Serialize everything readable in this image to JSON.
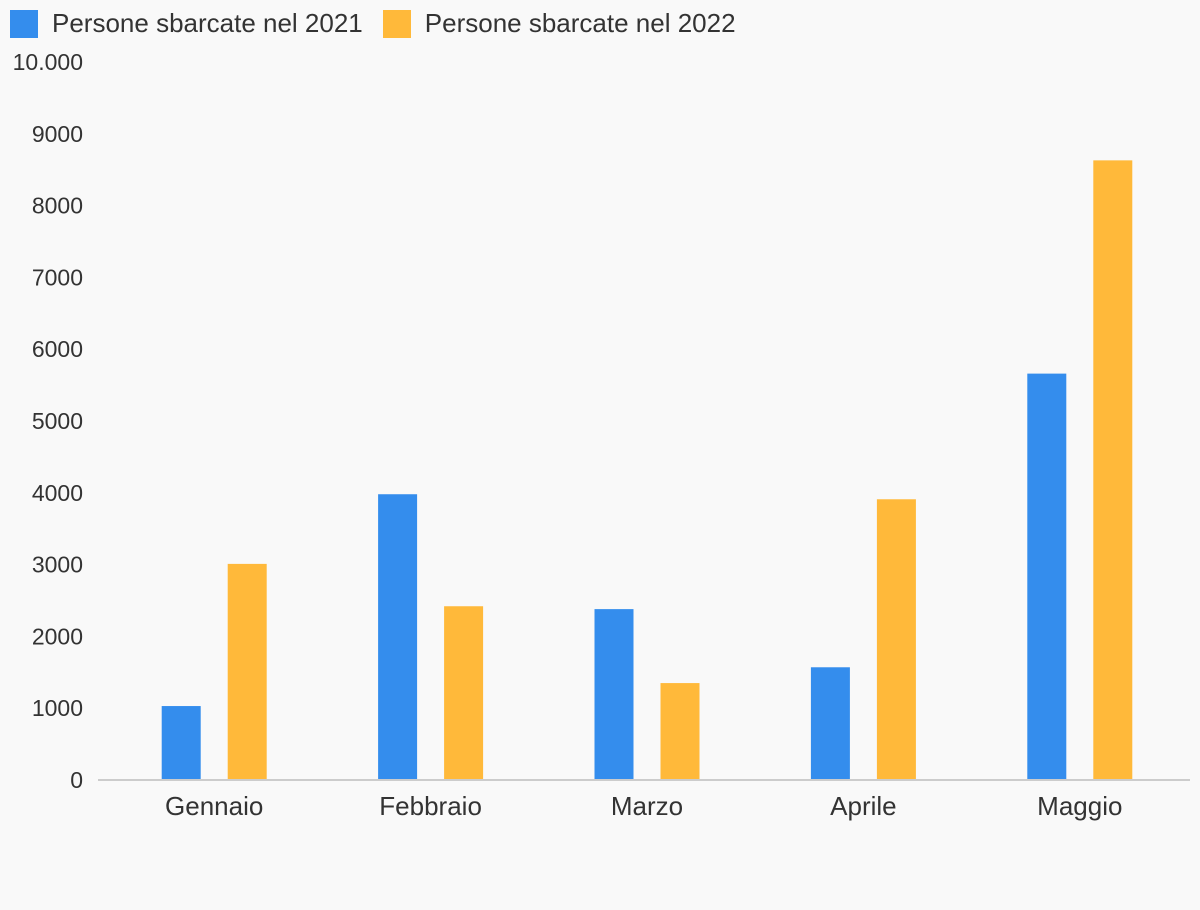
{
  "chart_data": {
    "type": "bar",
    "title": "",
    "xlabel": "",
    "ylabel": "",
    "categories": [
      "Gennaio",
      "Febbraio",
      "Marzo",
      "Aprile",
      "Maggio"
    ],
    "series": [
      {
        "name": "Persone sbarcate nel 2021",
        "color": "#348ded",
        "values": [
          1030,
          3980,
          2380,
          1570,
          5660
        ]
      },
      {
        "name": "Persone sbarcate nel 2022",
        "color": "#ffb93a",
        "values": [
          3010,
          2420,
          1350,
          3910,
          8630
        ]
      }
    ],
    "ylim": [
      0,
      10000
    ],
    "yticks": [
      0,
      1000,
      2000,
      3000,
      4000,
      5000,
      6000,
      7000,
      8000,
      9000,
      10000
    ],
    "ytick_labels": [
      "0",
      "1000",
      "2000",
      "3000",
      "4000",
      "5000",
      "6000",
      "7000",
      "8000",
      "9000",
      "10.000"
    ],
    "grid": false,
    "legend_position": "top-left"
  }
}
